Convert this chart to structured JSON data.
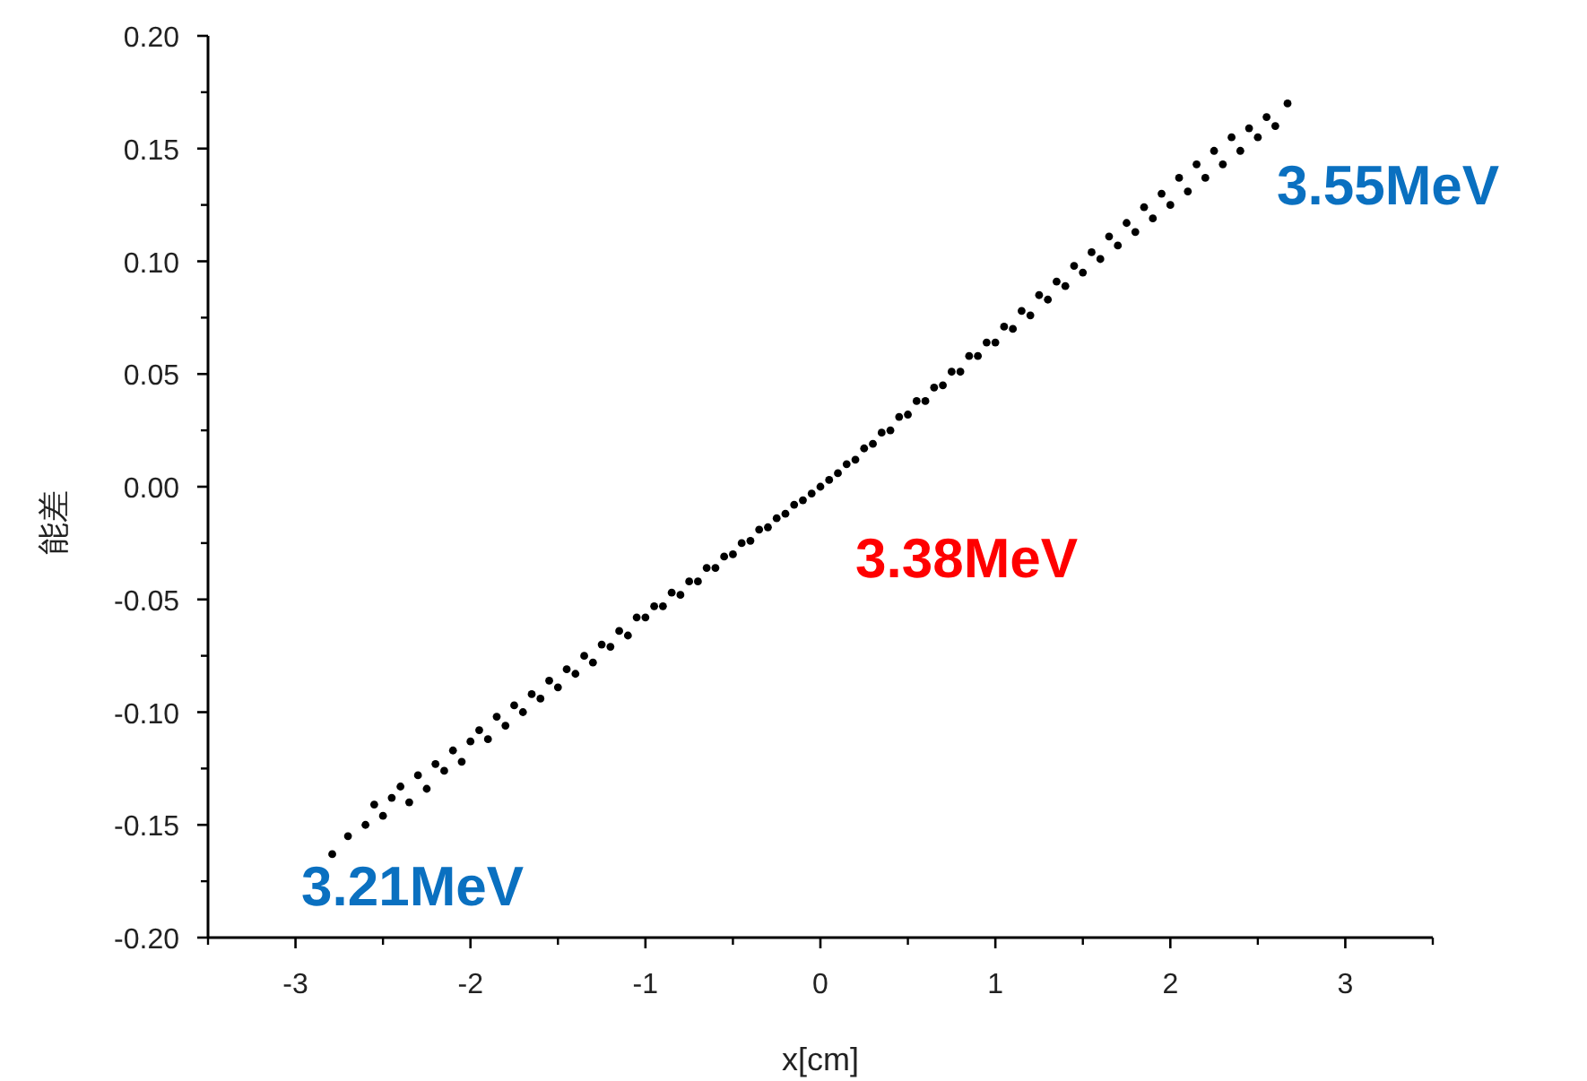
{
  "chart_data": {
    "type": "scatter",
    "ylabel": "能差",
    "xlabel": "x[cm]",
    "xlim": [
      -3.5,
      3.5
    ],
    "xticks": [
      -3,
      -2,
      -1,
      0,
      1,
      2,
      3
    ],
    "ylim": [
      -0.2,
      0.2
    ],
    "yticks": [
      {
        "value": -0.2,
        "label": "-0.20"
      },
      {
        "value": -0.15,
        "label": "-0.15"
      },
      {
        "value": -0.1,
        "label": "-0.10"
      },
      {
        "value": -0.05,
        "label": "-0.05"
      },
      {
        "value": 0,
        "label": "0.00"
      },
      {
        "value": 0.05,
        "label": "0.05"
      },
      {
        "value": 0.1,
        "label": "0.10"
      },
      {
        "value": 0.15,
        "label": "0.15"
      },
      {
        "value": 0.2,
        "label": "0.20"
      }
    ],
    "annotations": [
      "3.55MeV",
      "3.38MeV",
      "3.21MeV"
    ],
    "series": [
      {
        "color": "#000000",
        "x": [
          -2.79,
          -2.7,
          -2.6,
          -2.55,
          -2.5,
          -2.45,
          -2.4,
          -2.35,
          -2.3,
          -2.25,
          -2.2,
          -2.15,
          -2.1,
          -2.05,
          -2.0,
          -1.95,
          -1.9,
          -1.85,
          -1.8,
          -1.75,
          -1.7,
          -1.65,
          -1.6,
          -1.55,
          -1.5,
          -1.45,
          -1.4,
          -1.35,
          -1.3,
          -1.25,
          -1.2,
          -1.15,
          -1.1,
          -1.05,
          -1.0,
          -0.95,
          -0.9,
          -0.85,
          -0.8,
          -0.75,
          -0.7,
          -0.65,
          -0.6,
          -0.55,
          -0.5,
          -0.45,
          -0.4,
          -0.35,
          -0.3,
          -0.25,
          -0.2,
          -0.15,
          -0.1,
          -0.05,
          0,
          0.05,
          0.1,
          0.15,
          0.2,
          0.25,
          0.3,
          0.35,
          0.4,
          0.45,
          0.5,
          0.55,
          0.6,
          0.65,
          0.7,
          0.75,
          0.8,
          0.85,
          0.9,
          0.95,
          1.0,
          1.05,
          1.1,
          1.15,
          1.2,
          1.25,
          1.3,
          1.35,
          1.4,
          1.45,
          1.5,
          1.55,
          1.6,
          1.65,
          1.7,
          1.75,
          1.8,
          1.85,
          1.9,
          1.95,
          2.0,
          2.05,
          2.1,
          2.15,
          2.2,
          2.25,
          2.3,
          2.35,
          2.4,
          2.45,
          2.5,
          2.55,
          2.6,
          2.67
        ],
        "values": [
          -0.163,
          -0.155,
          -0.15,
          -0.141,
          -0.146,
          -0.138,
          -0.133,
          -0.14,
          -0.128,
          -0.134,
          -0.123,
          -0.126,
          -0.117,
          -0.122,
          -0.113,
          -0.108,
          -0.112,
          -0.102,
          -0.106,
          -0.097,
          -0.1,
          -0.092,
          -0.094,
          -0.086,
          -0.089,
          -0.081,
          -0.083,
          -0.075,
          -0.078,
          -0.07,
          -0.071,
          -0.064,
          -0.066,
          -0.058,
          -0.058,
          -0.053,
          -0.053,
          -0.047,
          -0.048,
          -0.042,
          -0.042,
          -0.036,
          -0.036,
          -0.031,
          -0.03,
          -0.025,
          -0.024,
          -0.019,
          -0.018,
          -0.014,
          -0.012,
          -0.008,
          -0.006,
          -0.003,
          0,
          0.003,
          0.006,
          0.01,
          0.012,
          0.017,
          0.019,
          0.024,
          0.025,
          0.031,
          0.032,
          0.038,
          0.038,
          0.044,
          0.045,
          0.051,
          0.051,
          0.058,
          0.058,
          0.064,
          0.064,
          0.071,
          0.07,
          0.078,
          0.076,
          0.085,
          0.083,
          0.091,
          0.089,
          0.098,
          0.095,
          0.104,
          0.101,
          0.111,
          0.107,
          0.117,
          0.113,
          0.124,
          0.119,
          0.13,
          0.125,
          0.137,
          0.131,
          0.143,
          0.137,
          0.149,
          0.143,
          0.155,
          0.149,
          0.159,
          0.155,
          0.164,
          0.16,
          0.17
        ]
      }
    ]
  }
}
